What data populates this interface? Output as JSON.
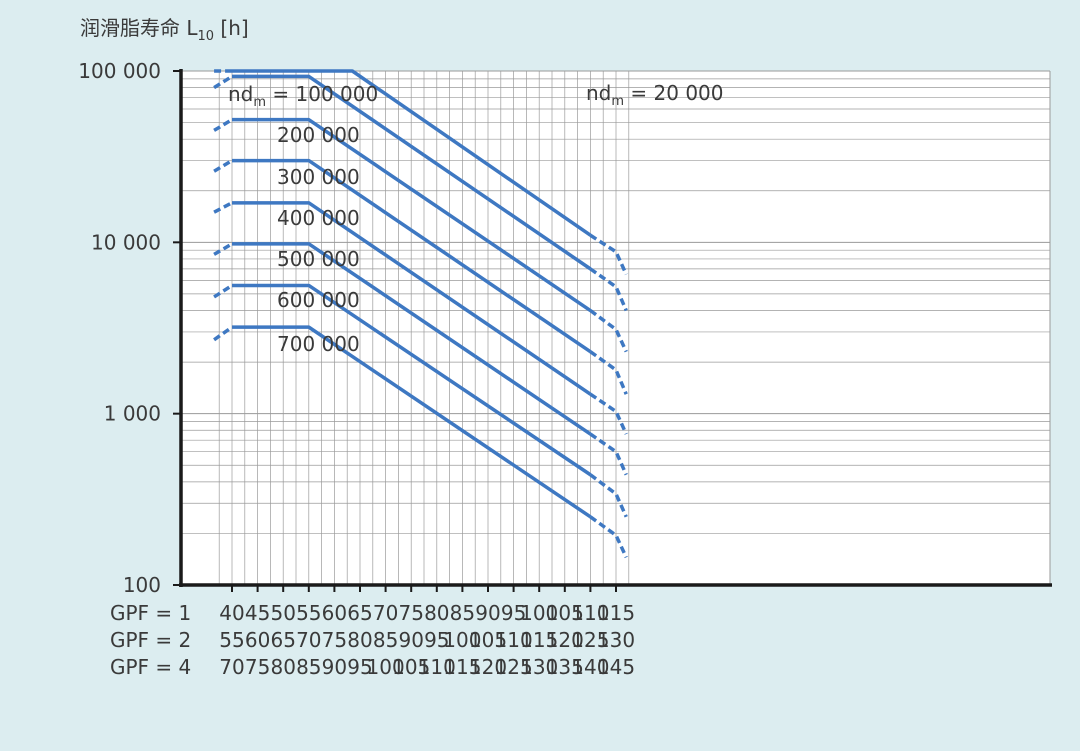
{
  "chart_data": {
    "type": "line",
    "title": "",
    "ylabel_main": "润滑脂寿命 L",
    "ylabel_sub": "10",
    "ylabel_unit": " [h]",
    "y_scale": "log",
    "ylim": [
      100,
      100000
    ],
    "xlim": [
      35,
      118
    ],
    "grid": true,
    "y_ticks": [
      {
        "value": 100,
        "label": "100"
      },
      {
        "value": 1000,
        "label": "1 000"
      },
      {
        "value": 10000,
        "label": "10 000"
      },
      {
        "value": 100000,
        "label": "100 000"
      }
    ],
    "x_tick_values": [
      40,
      45,
      50,
      55,
      60,
      65,
      70,
      75,
      80,
      85,
      90,
      95,
      100,
      105,
      110,
      115
    ],
    "x_axis_rows": [
      {
        "label": "GPF = 1",
        "ticks": [
          "40",
          "45",
          "50",
          "55",
          "60",
          "65",
          "70",
          "75",
          "80",
          "85",
          "90",
          "95",
          "100",
          "105",
          "110",
          "115"
        ]
      },
      {
        "label": "GPF = 2",
        "ticks": [
          "55",
          "60",
          "65",
          "70",
          "75",
          "80",
          "85",
          "90",
          "95",
          "100",
          "105",
          "110",
          "115",
          "120",
          "125",
          "130"
        ]
      },
      {
        "label": "GPF = 4",
        "ticks": [
          "70",
          "75",
          "80",
          "85",
          "90",
          "95",
          "100",
          "105",
          "110",
          "115",
          "120",
          "125",
          "130",
          "135",
          "140",
          "145"
        ]
      }
    ],
    "series": [
      {
        "name": "nd = 20 000",
        "label_main": "nd",
        "label_sub": "m",
        "label_rest": " = 20 000",
        "flat_value": 100000,
        "knee_x": 63.5,
        "end_x": 110,
        "end_value": 11000,
        "y115": 8800,
        "y117": 6500,
        "start_value": 100000
      },
      {
        "name": "nd = 100 000",
        "label_main": "nd",
        "label_sub": "m",
        "label_rest": " = 100 000",
        "flat_value": 93000,
        "knee_x": 55,
        "end_x": 110,
        "end_value": 7000,
        "y115": 5500,
        "y117": 4000,
        "start_value": 80000
      },
      {
        "name": "200 000",
        "label_main": "200 000",
        "flat_value": 52000,
        "knee_x": 55,
        "end_x": 110,
        "end_value": 4000,
        "y115": 3100,
        "y117": 2300,
        "start_value": 45000
      },
      {
        "name": "300 000",
        "label_main": "300 000",
        "flat_value": 30000,
        "knee_x": 55,
        "end_x": 110,
        "end_value": 2300,
        "y115": 1800,
        "y117": 1300,
        "start_value": 26000
      },
      {
        "name": "400 000",
        "label_main": "400 000",
        "flat_value": 17000,
        "knee_x": 55,
        "end_x": 110,
        "end_value": 1300,
        "y115": 1030,
        "y117": 760,
        "start_value": 15000
      },
      {
        "name": "500 000",
        "label_main": "500 000",
        "flat_value": 9800,
        "knee_x": 55,
        "end_x": 110,
        "end_value": 760,
        "y115": 600,
        "y117": 440,
        "start_value": 8500
      },
      {
        "name": "600 000",
        "label_main": "600 000",
        "flat_value": 5600,
        "knee_x": 55,
        "end_x": 110,
        "end_value": 440,
        "y115": 340,
        "y117": 250,
        "start_value": 4800
      },
      {
        "name": "700 000",
        "label_main": "700 000",
        "flat_value": 3200,
        "knee_x": 55,
        "end_x": 110,
        "end_value": 250,
        "y115": 195,
        "y117": 145,
        "start_value": 2700
      }
    ],
    "colors": {
      "line": "#3e78c2",
      "grid": "#9a9a9a",
      "axis": "#1a1a1a"
    }
  }
}
